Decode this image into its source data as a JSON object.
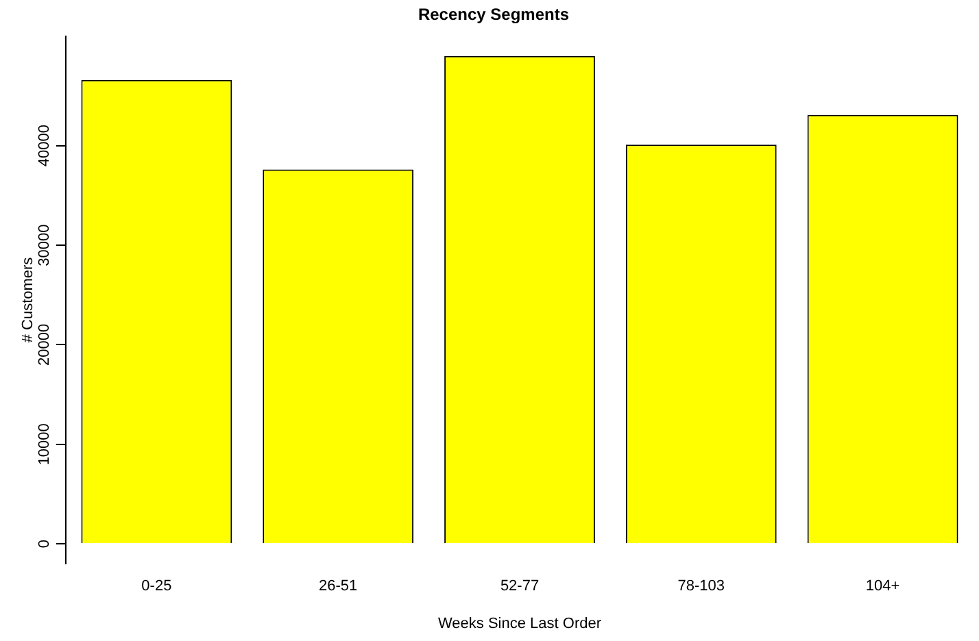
{
  "chart_data": {
    "type": "bar",
    "title": "Recency Segments",
    "xlabel": "Weeks Since Last Order",
    "ylabel": "# Customers",
    "categories": [
      "0-25",
      "26-51",
      "52-77",
      "78-103",
      "104+"
    ],
    "values": [
      46600,
      37600,
      49000,
      40100,
      43100
    ],
    "color": "#ffff00",
    "ylim": [
      -2000,
      51000
    ],
    "yticks": [
      0,
      10000,
      20000,
      30000,
      40000
    ],
    "grid": false,
    "legend": false
  }
}
